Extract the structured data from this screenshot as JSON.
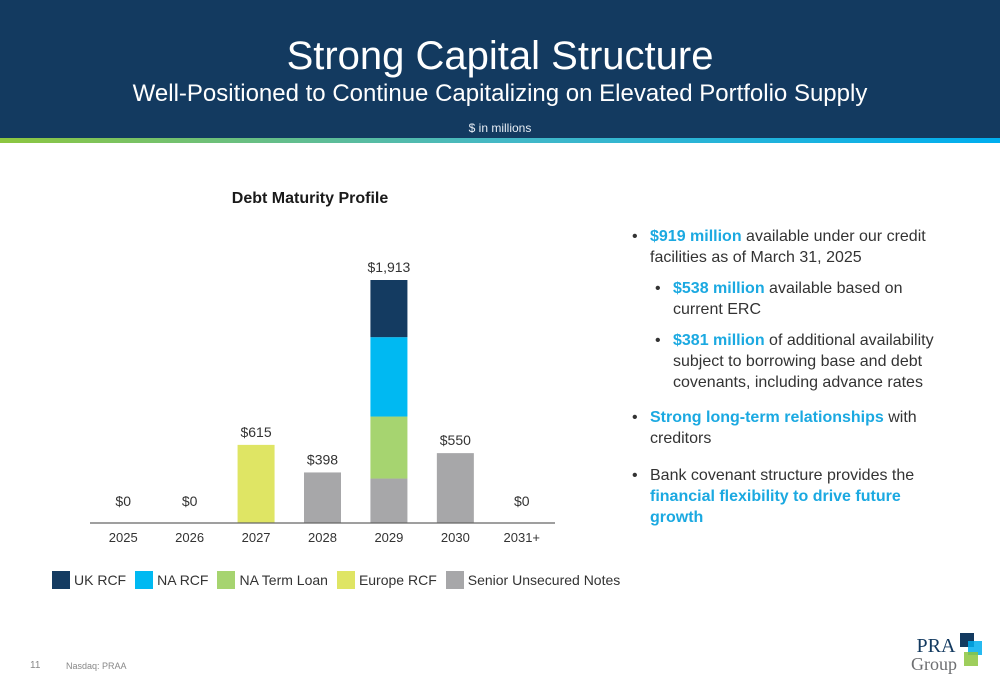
{
  "header": {
    "title": "Strong Capital Structure",
    "subtitle": "Well-Positioned to Continue Capitalizing on Elevated Portfolio Supply",
    "units": "$ in millions"
  },
  "chart_data": {
    "type": "bar",
    "stacked": true,
    "title": "Debt Maturity Profile",
    "xlabel": "",
    "ylabel": "",
    "ylim": [
      0,
      1913
    ],
    "grid": false,
    "legend_position": "bottom",
    "categories": [
      "2025",
      "2026",
      "2027",
      "2028",
      "2029",
      "2030",
      "2031+"
    ],
    "totals": [
      "$0",
      "$0",
      "$615",
      "$398",
      "$1,913",
      "$550",
      "$0"
    ],
    "series": [
      {
        "name": "Senior Unsecured Notes",
        "color": "#a7a7a9",
        "values": [
          0,
          0,
          0,
          398,
          350,
          550,
          0
        ]
      },
      {
        "name": "Europe RCF",
        "color": "#dfe564",
        "values": [
          0,
          0,
          615,
          0,
          0,
          0,
          0
        ]
      },
      {
        "name": "NA Term Loan",
        "color": "#a6d470",
        "values": [
          0,
          0,
          0,
          0,
          488,
          0,
          0
        ]
      },
      {
        "name": "NA RCF",
        "color": "#00b9f2",
        "values": [
          0,
          0,
          0,
          0,
          625,
          0,
          0
        ]
      },
      {
        "name": "UK RCF",
        "color": "#143b61",
        "values": [
          0,
          0,
          0,
          0,
          450,
          0,
          0
        ]
      }
    ],
    "legend_order": [
      "UK RCF",
      "NA RCF",
      "NA Term Loan",
      "Europe RCF",
      "Senior Unsecured Notes"
    ]
  },
  "bullets": [
    {
      "level": 1,
      "segments": [
        {
          "text": "$919 million",
          "hl": true
        },
        {
          "text": " available under our credit facilities as of March 31, 2025",
          "hl": false
        }
      ]
    },
    {
      "level": 2,
      "segments": [
        {
          "text": "$538 million",
          "hl": true
        },
        {
          "text": " available based on current ERC",
          "hl": false
        }
      ]
    },
    {
      "level": 2,
      "segments": [
        {
          "text": "$381 million",
          "hl": true
        },
        {
          "text": " of additional availability subject to borrowing base and debt covenants, including advance rates",
          "hl": false
        }
      ]
    },
    {
      "level": 1,
      "segments": [
        {
          "text": "Strong long-term relationships",
          "hl": true
        },
        {
          "text": " with creditors",
          "hl": false
        }
      ]
    },
    {
      "level": 1,
      "segments": [
        {
          "text": "Bank covenant structure provides the ",
          "hl": false
        },
        {
          "text": "financial flexibility to drive future growth",
          "hl": true
        }
      ]
    }
  ],
  "footer": {
    "page_number": "11",
    "ticker": "Nasdaq: PRAA"
  },
  "logo": {
    "line1": "PRA",
    "line2": "Group",
    "colors": [
      "#133a60",
      "#00aeef",
      "#8dc63f"
    ]
  }
}
